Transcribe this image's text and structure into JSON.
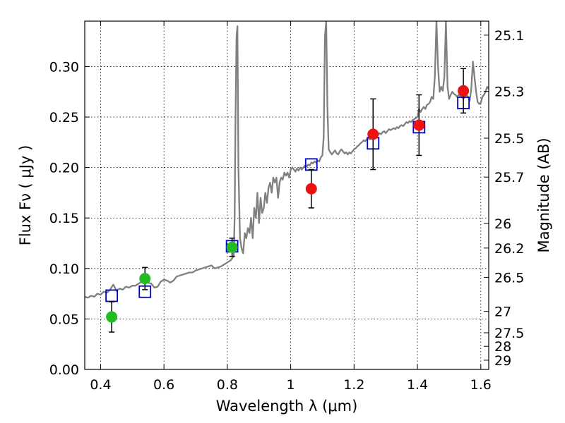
{
  "chart_data": {
    "type": "scatter",
    "xlabel": "Wavelength  λ (μm)",
    "ylabel": "Flux  Fν  ( μJy )",
    "y2label": "Magnitude (AB)",
    "xlim": [
      0.35,
      1.625
    ],
    "ylim": [
      0.0,
      0.345
    ],
    "grid": true,
    "x_ticks": [
      {
        "value": 0.4,
        "label": "0.4"
      },
      {
        "value": 0.6,
        "label": "0.6"
      },
      {
        "value": 0.8,
        "label": "0.8"
      },
      {
        "value": 1.0,
        "label": "1"
      },
      {
        "value": 1.2,
        "label": "1.2"
      },
      {
        "value": 1.4,
        "label": "1.4"
      },
      {
        "value": 1.6,
        "label": "1.6"
      }
    ],
    "y_ticks": [
      {
        "value": 0.0,
        "label": "0.00"
      },
      {
        "value": 0.05,
        "label": "0.05"
      },
      {
        "value": 0.1,
        "label": "0.10"
      },
      {
        "value": 0.15,
        "label": "0.15"
      },
      {
        "value": 0.2,
        "label": "0.20"
      },
      {
        "value": 0.25,
        "label": "0.25"
      },
      {
        "value": 0.3,
        "label": "0.30"
      }
    ],
    "y2_ticks": [
      {
        "mag": 25.1,
        "label": "25.1"
      },
      {
        "mag": 25.3,
        "label": "25.3"
      },
      {
        "mag": 25.5,
        "label": "25.5"
      },
      {
        "mag": 25.7,
        "label": "25.7"
      },
      {
        "mag": 26,
        "label": "26"
      },
      {
        "mag": 26.2,
        "label": "26.2"
      },
      {
        "mag": 26.5,
        "label": "26.5"
      },
      {
        "mag": 27,
        "label": "27"
      },
      {
        "mag": 27.5,
        "label": "27.5"
      },
      {
        "mag": 28,
        "label": "28"
      },
      {
        "mag": 29,
        "label": "29"
      }
    ],
    "series": [
      {
        "kind": "line",
        "color": "#808080",
        "points": [
          [
            0.35,
            0.072
          ],
          [
            0.36,
            0.071
          ],
          [
            0.37,
            0.073
          ],
          [
            0.38,
            0.072
          ],
          [
            0.39,
            0.075
          ],
          [
            0.4,
            0.074
          ],
          [
            0.41,
            0.077
          ],
          [
            0.42,
            0.076
          ],
          [
            0.43,
            0.079
          ],
          [
            0.44,
            0.084
          ],
          [
            0.45,
            0.078
          ],
          [
            0.46,
            0.08
          ],
          [
            0.47,
            0.079
          ],
          [
            0.48,
            0.082
          ],
          [
            0.49,
            0.081
          ],
          [
            0.5,
            0.083
          ],
          [
            0.51,
            0.083
          ],
          [
            0.52,
            0.085
          ],
          [
            0.53,
            0.087
          ],
          [
            0.54,
            0.086
          ],
          [
            0.55,
            0.086
          ],
          [
            0.56,
            0.085
          ],
          [
            0.57,
            0.081
          ],
          [
            0.58,
            0.082
          ],
          [
            0.59,
            0.087
          ],
          [
            0.6,
            0.089
          ],
          [
            0.61,
            0.088
          ],
          [
            0.62,
            0.086
          ],
          [
            0.63,
            0.088
          ],
          [
            0.64,
            0.092
          ],
          [
            0.65,
            0.093
          ],
          [
            0.66,
            0.094
          ],
          [
            0.67,
            0.095
          ],
          [
            0.68,
            0.096
          ],
          [
            0.69,
            0.096
          ],
          [
            0.7,
            0.098
          ],
          [
            0.71,
            0.099
          ],
          [
            0.72,
            0.1
          ],
          [
            0.73,
            0.101
          ],
          [
            0.74,
            0.102
          ],
          [
            0.75,
            0.103
          ],
          [
            0.76,
            0.1
          ],
          [
            0.77,
            0.101
          ],
          [
            0.78,
            0.102
          ],
          [
            0.79,
            0.104
          ],
          [
            0.8,
            0.106
          ],
          [
            0.81,
            0.108
          ],
          [
            0.815,
            0.11
          ],
          [
            0.82,
            0.112
          ],
          [
            0.823,
            0.15
          ],
          [
            0.826,
            0.25
          ],
          [
            0.829,
            0.33
          ],
          [
            0.832,
            0.34
          ],
          [
            0.835,
            0.2
          ],
          [
            0.84,
            0.13
          ],
          [
            0.845,
            0.12
          ],
          [
            0.85,
            0.115
          ],
          [
            0.855,
            0.135
          ],
          [
            0.86,
            0.13
          ],
          [
            0.865,
            0.14
          ],
          [
            0.87,
            0.135
          ],
          [
            0.875,
            0.15
          ],
          [
            0.88,
            0.13
          ],
          [
            0.885,
            0.16
          ],
          [
            0.89,
            0.15
          ],
          [
            0.895,
            0.175
          ],
          [
            0.9,
            0.145
          ],
          [
            0.905,
            0.17
          ],
          [
            0.91,
            0.155
          ],
          [
            0.915,
            0.16
          ],
          [
            0.92,
            0.175
          ],
          [
            0.925,
            0.165
          ],
          [
            0.93,
            0.18
          ],
          [
            0.935,
            0.185
          ],
          [
            0.94,
            0.175
          ],
          [
            0.945,
            0.19
          ],
          [
            0.95,
            0.185
          ],
          [
            0.955,
            0.19
          ],
          [
            0.96,
            0.17
          ],
          [
            0.965,
            0.185
          ],
          [
            0.97,
            0.19
          ],
          [
            0.975,
            0.188
          ],
          [
            0.98,
            0.195
          ],
          [
            0.985,
            0.192
          ],
          [
            0.99,
            0.195
          ],
          [
            0.995,
            0.19
          ],
          [
            1.0,
            0.198
          ],
          [
            1.005,
            0.2
          ],
          [
            1.01,
            0.198
          ],
          [
            1.015,
            0.196
          ],
          [
            1.02,
            0.199
          ],
          [
            1.025,
            0.197
          ],
          [
            1.03,
            0.2
          ],
          [
            1.035,
            0.198
          ],
          [
            1.04,
            0.2
          ],
          [
            1.045,
            0.202
          ],
          [
            1.05,
            0.201
          ],
          [
            1.055,
            0.203
          ],
          [
            1.06,
            0.202
          ],
          [
            1.065,
            0.205
          ],
          [
            1.07,
            0.204
          ],
          [
            1.075,
            0.206
          ],
          [
            1.08,
            0.205
          ],
          [
            1.085,
            0.207
          ],
          [
            1.09,
            0.206
          ],
          [
            1.095,
            0.21
          ],
          [
            1.1,
            0.212
          ],
          [
            1.104,
            0.23
          ],
          [
            1.108,
            0.33
          ],
          [
            1.112,
            0.345
          ],
          [
            1.116,
            0.26
          ],
          [
            1.12,
            0.218
          ],
          [
            1.125,
            0.215
          ],
          [
            1.13,
            0.213
          ],
          [
            1.135,
            0.215
          ],
          [
            1.14,
            0.217
          ],
          [
            1.145,
            0.214
          ],
          [
            1.15,
            0.213
          ],
          [
            1.155,
            0.216
          ],
          [
            1.16,
            0.218
          ],
          [
            1.165,
            0.216
          ],
          [
            1.17,
            0.214
          ],
          [
            1.175,
            0.215
          ],
          [
            1.18,
            0.213
          ],
          [
            1.185,
            0.215
          ],
          [
            1.19,
            0.214
          ],
          [
            1.195,
            0.216
          ],
          [
            1.2,
            0.218
          ],
          [
            1.205,
            0.219
          ],
          [
            1.21,
            0.221
          ],
          [
            1.215,
            0.222
          ],
          [
            1.22,
            0.224
          ],
          [
            1.225,
            0.225
          ],
          [
            1.23,
            0.227
          ],
          [
            1.235,
            0.226
          ],
          [
            1.24,
            0.228
          ],
          [
            1.245,
            0.229
          ],
          [
            1.25,
            0.228
          ],
          [
            1.255,
            0.23
          ],
          [
            1.26,
            0.231
          ],
          [
            1.265,
            0.232
          ],
          [
            1.27,
            0.233
          ],
          [
            1.275,
            0.232
          ],
          [
            1.28,
            0.234
          ],
          [
            1.285,
            0.233
          ],
          [
            1.29,
            0.235
          ],
          [
            1.295,
            0.236
          ],
          [
            1.3,
            0.234
          ],
          [
            1.305,
            0.236
          ],
          [
            1.31,
            0.238
          ],
          [
            1.315,
            0.237
          ],
          [
            1.32,
            0.238
          ],
          [
            1.325,
            0.239
          ],
          [
            1.33,
            0.238
          ],
          [
            1.335,
            0.24
          ],
          [
            1.34,
            0.239
          ],
          [
            1.345,
            0.241
          ],
          [
            1.35,
            0.242
          ],
          [
            1.355,
            0.241
          ],
          [
            1.36,
            0.243
          ],
          [
            1.365,
            0.245
          ],
          [
            1.37,
            0.244
          ],
          [
            1.375,
            0.246
          ],
          [
            1.38,
            0.245
          ],
          [
            1.385,
            0.247
          ],
          [
            1.39,
            0.248
          ],
          [
            1.395,
            0.249
          ],
          [
            1.4,
            0.25
          ],
          [
            1.405,
            0.258
          ],
          [
            1.41,
            0.255
          ],
          [
            1.415,
            0.258
          ],
          [
            1.42,
            0.26
          ],
          [
            1.425,
            0.258
          ],
          [
            1.43,
            0.262
          ],
          [
            1.435,
            0.263
          ],
          [
            1.44,
            0.265
          ],
          [
            1.445,
            0.27
          ],
          [
            1.45,
            0.268
          ],
          [
            1.455,
            0.29
          ],
          [
            1.46,
            0.345
          ],
          [
            1.465,
            0.3
          ],
          [
            1.47,
            0.275
          ],
          [
            1.475,
            0.28
          ],
          [
            1.48,
            0.276
          ],
          [
            1.485,
            0.29
          ],
          [
            1.49,
            0.345
          ],
          [
            1.495,
            0.28
          ],
          [
            1.5,
            0.268
          ],
          [
            1.505,
            0.272
          ],
          [
            1.51,
            0.275
          ],
          [
            1.515,
            0.273
          ],
          [
            1.52,
            0.272
          ],
          [
            1.525,
            0.27
          ],
          [
            1.53,
            0.272
          ],
          [
            1.535,
            0.271
          ],
          [
            1.54,
            0.27
          ],
          [
            1.545,
            0.268
          ],
          [
            1.55,
            0.27
          ],
          [
            1.555,
            0.272
          ],
          [
            1.56,
            0.27
          ],
          [
            1.565,
            0.266
          ],
          [
            1.57,
            0.278
          ],
          [
            1.575,
            0.305
          ],
          [
            1.58,
            0.29
          ],
          [
            1.585,
            0.275
          ],
          [
            1.59,
            0.265
          ],
          [
            1.595,
            0.263
          ],
          [
            1.6,
            0.264
          ],
          [
            1.605,
            0.27
          ],
          [
            1.61,
            0.272
          ],
          [
            1.615,
            0.275
          ],
          [
            1.62,
            0.28
          ],
          [
            1.625,
            0.278
          ]
        ]
      },
      {
        "kind": "marker-square",
        "color": "#0000cc",
        "points": [
          [
            0.435,
            0.073
          ],
          [
            0.54,
            0.077
          ],
          [
            0.815,
            0.122
          ],
          [
            1.065,
            0.203
          ],
          [
            1.26,
            0.224
          ],
          [
            1.405,
            0.24
          ],
          [
            1.545,
            0.264
          ]
        ]
      },
      {
        "kind": "marker-circle",
        "color": "#22bb22",
        "points": [
          [
            0.435,
            0.052,
            0.015
          ],
          [
            0.54,
            0.09,
            0.011
          ],
          [
            0.815,
            0.121,
            0.009
          ]
        ]
      },
      {
        "kind": "marker-circle",
        "color": "#ee1111",
        "points": [
          [
            1.065,
            0.179,
            0.019
          ],
          [
            1.26,
            0.233,
            0.035
          ],
          [
            1.405,
            0.242,
            0.03
          ],
          [
            1.545,
            0.276,
            0.022
          ]
        ]
      }
    ]
  }
}
